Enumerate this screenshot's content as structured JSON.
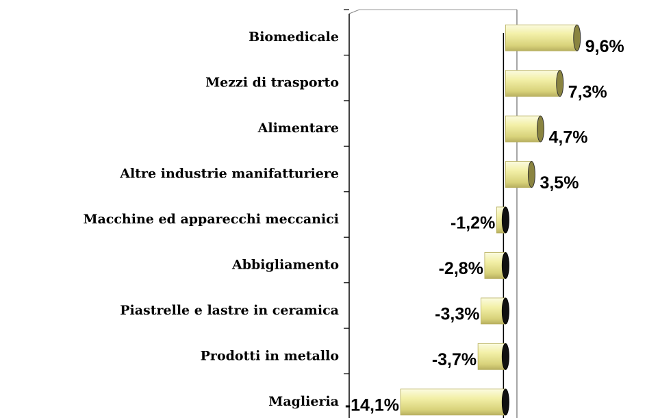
{
  "chart_data": {
    "type": "barh",
    "categories": [
      "Biomedicale",
      "Mezzi di trasporto",
      "Alimentare",
      "Altre industrie manifatturiere",
      "Macchine ed apparecchi meccanici",
      "Abbigliamento",
      "Piastrelle e lastre in ceramica",
      "Prodotti in metallo",
      "Maglieria"
    ],
    "values": [
      9.6,
      7.3,
      4.7,
      3.5,
      -1.2,
      -2.8,
      -3.3,
      -3.7,
      -14.1
    ],
    "value_labels": [
      "9,6%",
      "7,3%",
      "4,7%",
      "3,5%",
      "-1,2%",
      "-2,8%",
      "-3,3%",
      "-3,7%",
      "-14,1%"
    ],
    "color": "#f0eea0",
    "xlim": [
      -21,
      19
    ]
  }
}
